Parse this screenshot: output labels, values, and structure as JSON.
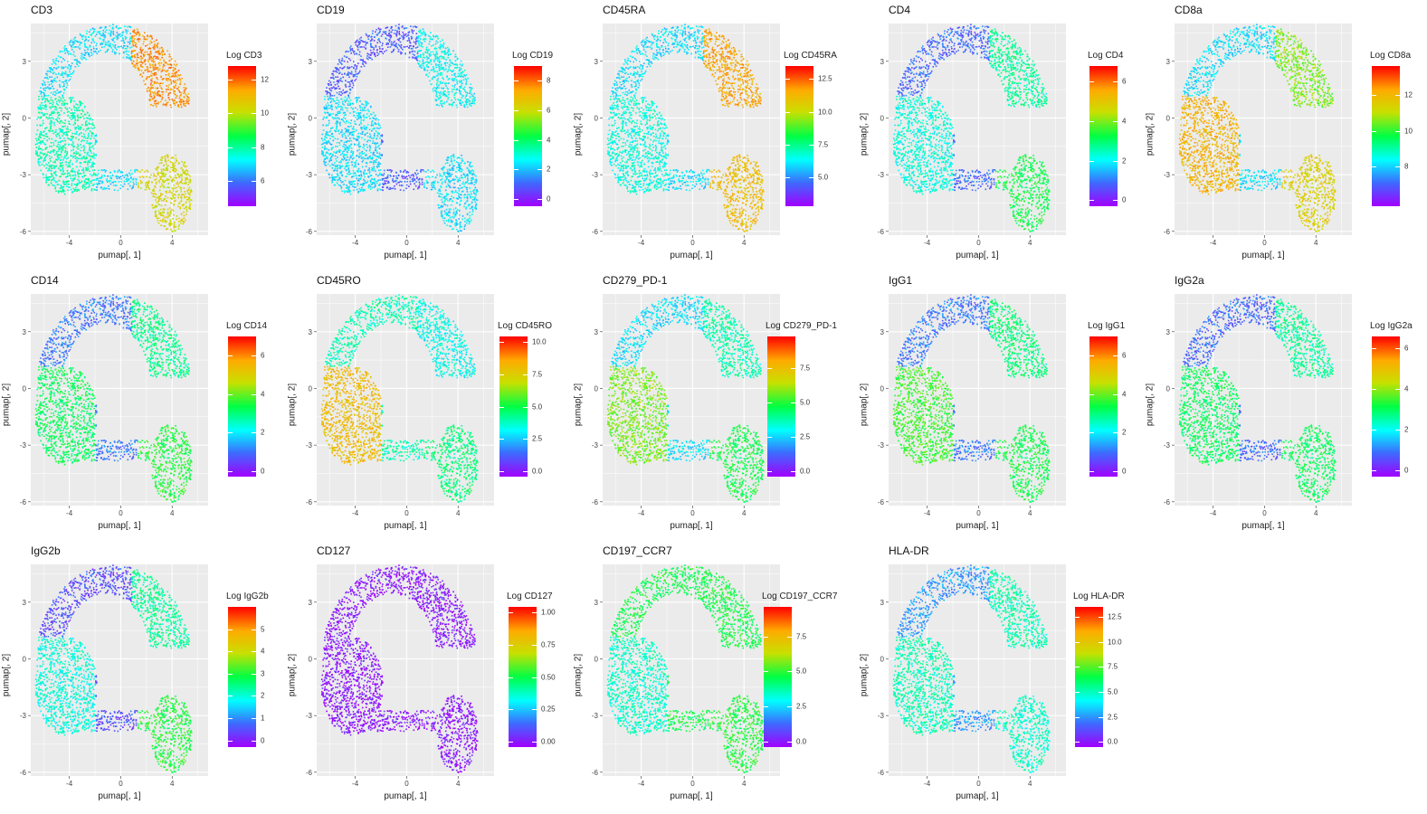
{
  "chart_data": [
    {
      "type": "scatter",
      "title": "CD3",
      "xlabel": "pumap[, 1]",
      "ylabel": "pumap[, 2]",
      "xticks": [
        "-4",
        "0",
        "4"
      ],
      "yticks": [
        "3",
        "0",
        "-3",
        "-6"
      ],
      "xlim": [
        -7.0,
        6.8
      ],
      "ylim": [
        -6.2,
        5.0
      ],
      "legend_title": "Log CD3",
      "legend_ticks": [
        "12",
        "10",
        "8",
        "6"
      ],
      "color_range": [
        4.5,
        12.8
      ],
      "pattern": {
        "a": 0.3,
        "r": 0.85,
        "l": 0.4,
        "b": 0.7
      }
    },
    {
      "type": "scatter",
      "title": "CD19",
      "xlabel": "pumap[, 1]",
      "ylabel": "pumap[, 2]",
      "xticks": [
        "-4",
        "0",
        "4"
      ],
      "yticks": [
        "3",
        "0",
        "-3",
        "-6"
      ],
      "xlim": [
        -7.0,
        6.8
      ],
      "ylim": [
        -6.2,
        5.0
      ],
      "legend_title": "Log CD19",
      "legend_ticks": [
        "8",
        "6",
        "4",
        "2",
        "0"
      ],
      "color_range": [
        -0.5,
        9.0
      ],
      "pattern": {
        "a": 0.14,
        "r": 0.33,
        "l": 0.3,
        "b": 0.3
      }
    },
    {
      "type": "scatter",
      "title": "CD45RA",
      "xlabel": "pumap[, 1]",
      "ylabel": "pumap[, 2]",
      "xticks": [
        "-4",
        "0",
        "4"
      ],
      "yticks": [
        "3",
        "0",
        "-3",
        "-6"
      ],
      "xlim": [
        -7.0,
        6.8
      ],
      "ylim": [
        -6.2,
        5.0
      ],
      "legend_title": "Log CD45RA",
      "legend_ticks": [
        "12.5",
        "10.0",
        "7.5",
        "5.0"
      ],
      "color_range": [
        2.8,
        13.5
      ],
      "pattern": {
        "a": 0.3,
        "r": 0.82,
        "l": 0.36,
        "b": 0.78
      }
    },
    {
      "type": "scatter",
      "title": "CD4",
      "xlabel": "pumap[, 1]",
      "ylabel": "pumap[, 2]",
      "xticks": [
        "-4",
        "0",
        "4"
      ],
      "yticks": [
        "3",
        "0",
        "-3",
        "-6"
      ],
      "xlim": [
        -7.0,
        6.8
      ],
      "ylim": [
        -6.2,
        5.0
      ],
      "legend_title": "Log CD4",
      "legend_ticks": [
        "6",
        "4",
        "2",
        "0"
      ],
      "color_range": [
        -0.3,
        6.8
      ],
      "pattern": {
        "a": 0.16,
        "r": 0.42,
        "l": 0.36,
        "b": 0.5
      }
    },
    {
      "type": "scatter",
      "title": "CD8a",
      "xlabel": "pumap[, 1]",
      "ylabel": "pumap[, 2]",
      "xticks": [
        "-4",
        "0",
        "4"
      ],
      "yticks": [
        "3",
        "0",
        "-3",
        "-6"
      ],
      "xlim": [
        -7.0,
        6.8
      ],
      "ylim": [
        -6.2,
        5.0
      ],
      "legend_title": "Log CD8a",
      "legend_ticks": [
        "12",
        "10",
        "8"
      ],
      "color_range": [
        5.8,
        13.6
      ],
      "pattern": {
        "a": 0.3,
        "r": 0.6,
        "l": 0.8,
        "b": 0.72
      }
    },
    {
      "type": "scatter",
      "title": "CD14",
      "xlabel": "pumap[, 1]",
      "ylabel": "pumap[, 2]",
      "xticks": [
        "-4",
        "0",
        "4"
      ],
      "yticks": [
        "3",
        "0",
        "-3",
        "-6"
      ],
      "xlim": [
        -7.0,
        6.8
      ],
      "ylim": [
        -6.2,
        5.0
      ],
      "legend_title": "Log CD14",
      "legend_ticks": [
        "6",
        "4",
        "2",
        "0"
      ],
      "color_range": [
        -0.3,
        7.0
      ],
      "pattern": {
        "a": 0.18,
        "r": 0.43,
        "l": 0.48,
        "b": 0.52
      }
    },
    {
      "type": "scatter",
      "title": "CD45RO",
      "xlabel": "pumap[, 1]",
      "ylabel": "pumap[, 2]",
      "xticks": [
        "-4",
        "0",
        "4"
      ],
      "yticks": [
        "3",
        "0",
        "-3",
        "-6"
      ],
      "xlim": [
        -7.0,
        6.8
      ],
      "ylim": [
        -6.2,
        5.0
      ],
      "legend_title": "Log CD45RO",
      "legend_ticks": [
        "10.0",
        "7.5",
        "5.0",
        "2.5",
        "0.0"
      ],
      "color_range": [
        -0.4,
        10.4
      ],
      "pattern": {
        "a": 0.4,
        "r": 0.34,
        "l": 0.78,
        "b": 0.45
      }
    },
    {
      "type": "scatter",
      "title": "CD279_PD-1",
      "xlabel": "pumap[, 1]",
      "ylabel": "pumap[, 2]",
      "xticks": [
        "-4",
        "0",
        "4"
      ],
      "yticks": [
        "3",
        "0",
        "-3",
        "-6"
      ],
      "xlim": [
        -7.0,
        6.8
      ],
      "ylim": [
        -6.2,
        5.0
      ],
      "legend_title": "Log CD279_PD-1",
      "legend_ticks": [
        "7.5",
        "5.0",
        "2.5",
        "0.0"
      ],
      "color_range": [
        -0.4,
        9.8
      ],
      "pattern": {
        "a": 0.3,
        "r": 0.4,
        "l": 0.6,
        "b": 0.5
      }
    },
    {
      "type": "scatter",
      "title": "IgG1",
      "xlabel": "pumap[, 1]",
      "ylabel": "pumap[, 2]",
      "xticks": [
        "-4",
        "0",
        "4"
      ],
      "yticks": [
        "3",
        "0",
        "-3",
        "-6"
      ],
      "xlim": [
        -7.0,
        6.8
      ],
      "ylim": [
        -6.2,
        5.0
      ],
      "legend_title": "Log IgG1",
      "legend_ticks": [
        "6",
        "4",
        "2",
        "0"
      ],
      "color_range": [
        -0.3,
        7.0
      ],
      "pattern": {
        "a": 0.18,
        "r": 0.45,
        "l": 0.55,
        "b": 0.5
      }
    },
    {
      "type": "scatter",
      "title": "IgG2a",
      "xlabel": "pumap[, 1]",
      "ylabel": "pumap[, 2]",
      "xticks": [
        "-4",
        "0",
        "4"
      ],
      "yticks": [
        "3",
        "0",
        "-3",
        "-6"
      ],
      "xlim": [
        -7.0,
        6.8
      ],
      "ylim": [
        -6.2,
        5.0
      ],
      "legend_title": "Log IgG2a",
      "legend_ticks": [
        "6",
        "4",
        "2",
        "0"
      ],
      "color_range": [
        -0.3,
        6.6
      ],
      "pattern": {
        "a": 0.16,
        "r": 0.42,
        "l": 0.48,
        "b": 0.48
      }
    },
    {
      "type": "scatter",
      "title": "IgG2b",
      "xlabel": "pumap[, 1]",
      "ylabel": "pumap[, 2]",
      "xticks": [
        "-4",
        "0",
        "4"
      ],
      "yticks": [
        "3",
        "0",
        "-3",
        "-6"
      ],
      "xlim": [
        -7.0,
        6.8
      ],
      "ylim": [
        -6.2,
        5.0
      ],
      "legend_title": "Log IgG2b",
      "legend_ticks": [
        "5",
        "4",
        "3",
        "2",
        "1",
        "0"
      ],
      "color_range": [
        -0.3,
        6.0
      ],
      "pattern": {
        "a": 0.12,
        "r": 0.42,
        "l": 0.36,
        "b": 0.52
      }
    },
    {
      "type": "scatter",
      "title": "CD127",
      "xlabel": "pumap[, 1]",
      "ylabel": "pumap[, 2]",
      "xticks": [
        "-4",
        "0",
        "4"
      ],
      "yticks": [
        "3",
        "0",
        "-3",
        "-6"
      ],
      "xlim": [
        -7.0,
        6.8
      ],
      "ylim": [
        -6.2,
        5.0
      ],
      "legend_title": "Log CD127",
      "legend_ticks": [
        "1.00",
        "0.75",
        "0.50",
        "0.25",
        "0.00"
      ],
      "color_range": [
        -0.04,
        1.04
      ],
      "pattern": {
        "a": 0.03,
        "r": 0.03,
        "l": 0.03,
        "b": 0.03
      }
    },
    {
      "type": "scatter",
      "title": "CD197_CCR7",
      "xlabel": "pumap[, 1]",
      "ylabel": "pumap[, 2]",
      "xticks": [
        "-4",
        "0",
        "4"
      ],
      "yticks": [
        "3",
        "0",
        "-3",
        "-6"
      ],
      "xlim": [
        -7.0,
        6.8
      ],
      "ylim": [
        -6.2,
        5.0
      ],
      "legend_title": "Log CD197_CCR7",
      "legend_ticks": [
        "7.5",
        "5.0",
        "2.5",
        "0.0"
      ],
      "color_range": [
        -0.4,
        9.6
      ],
      "pattern": {
        "a": 0.5,
        "r": 0.5,
        "l": 0.38,
        "b": 0.52
      }
    },
    {
      "type": "scatter",
      "title": "HLA-DR",
      "xlabel": "pumap[, 1]",
      "ylabel": "pumap[, 2]",
      "xticks": [
        "-4",
        "0",
        "4"
      ],
      "yticks": [
        "3",
        "0",
        "-3",
        "-6"
      ],
      "xlim": [
        -7.0,
        6.8
      ],
      "ylim": [
        -6.2,
        5.0
      ],
      "legend_title": "Log HLA-DR",
      "legend_ticks": [
        "12.5",
        "10.0",
        "7.5",
        "5.0",
        "2.5",
        "0.0"
      ],
      "color_range": [
        -0.5,
        13.5
      ],
      "pattern": {
        "a": 0.22,
        "r": 0.4,
        "l": 0.4,
        "b": 0.38
      }
    }
  ],
  "colors": {
    "panel_background": "#ebebeb",
    "grid": "#ffffff",
    "palette": [
      "#a100ff",
      "#3c6cff",
      "#00ffff",
      "#00ff44",
      "#c8e000",
      "#ffaa00",
      "#ff0000"
    ]
  }
}
